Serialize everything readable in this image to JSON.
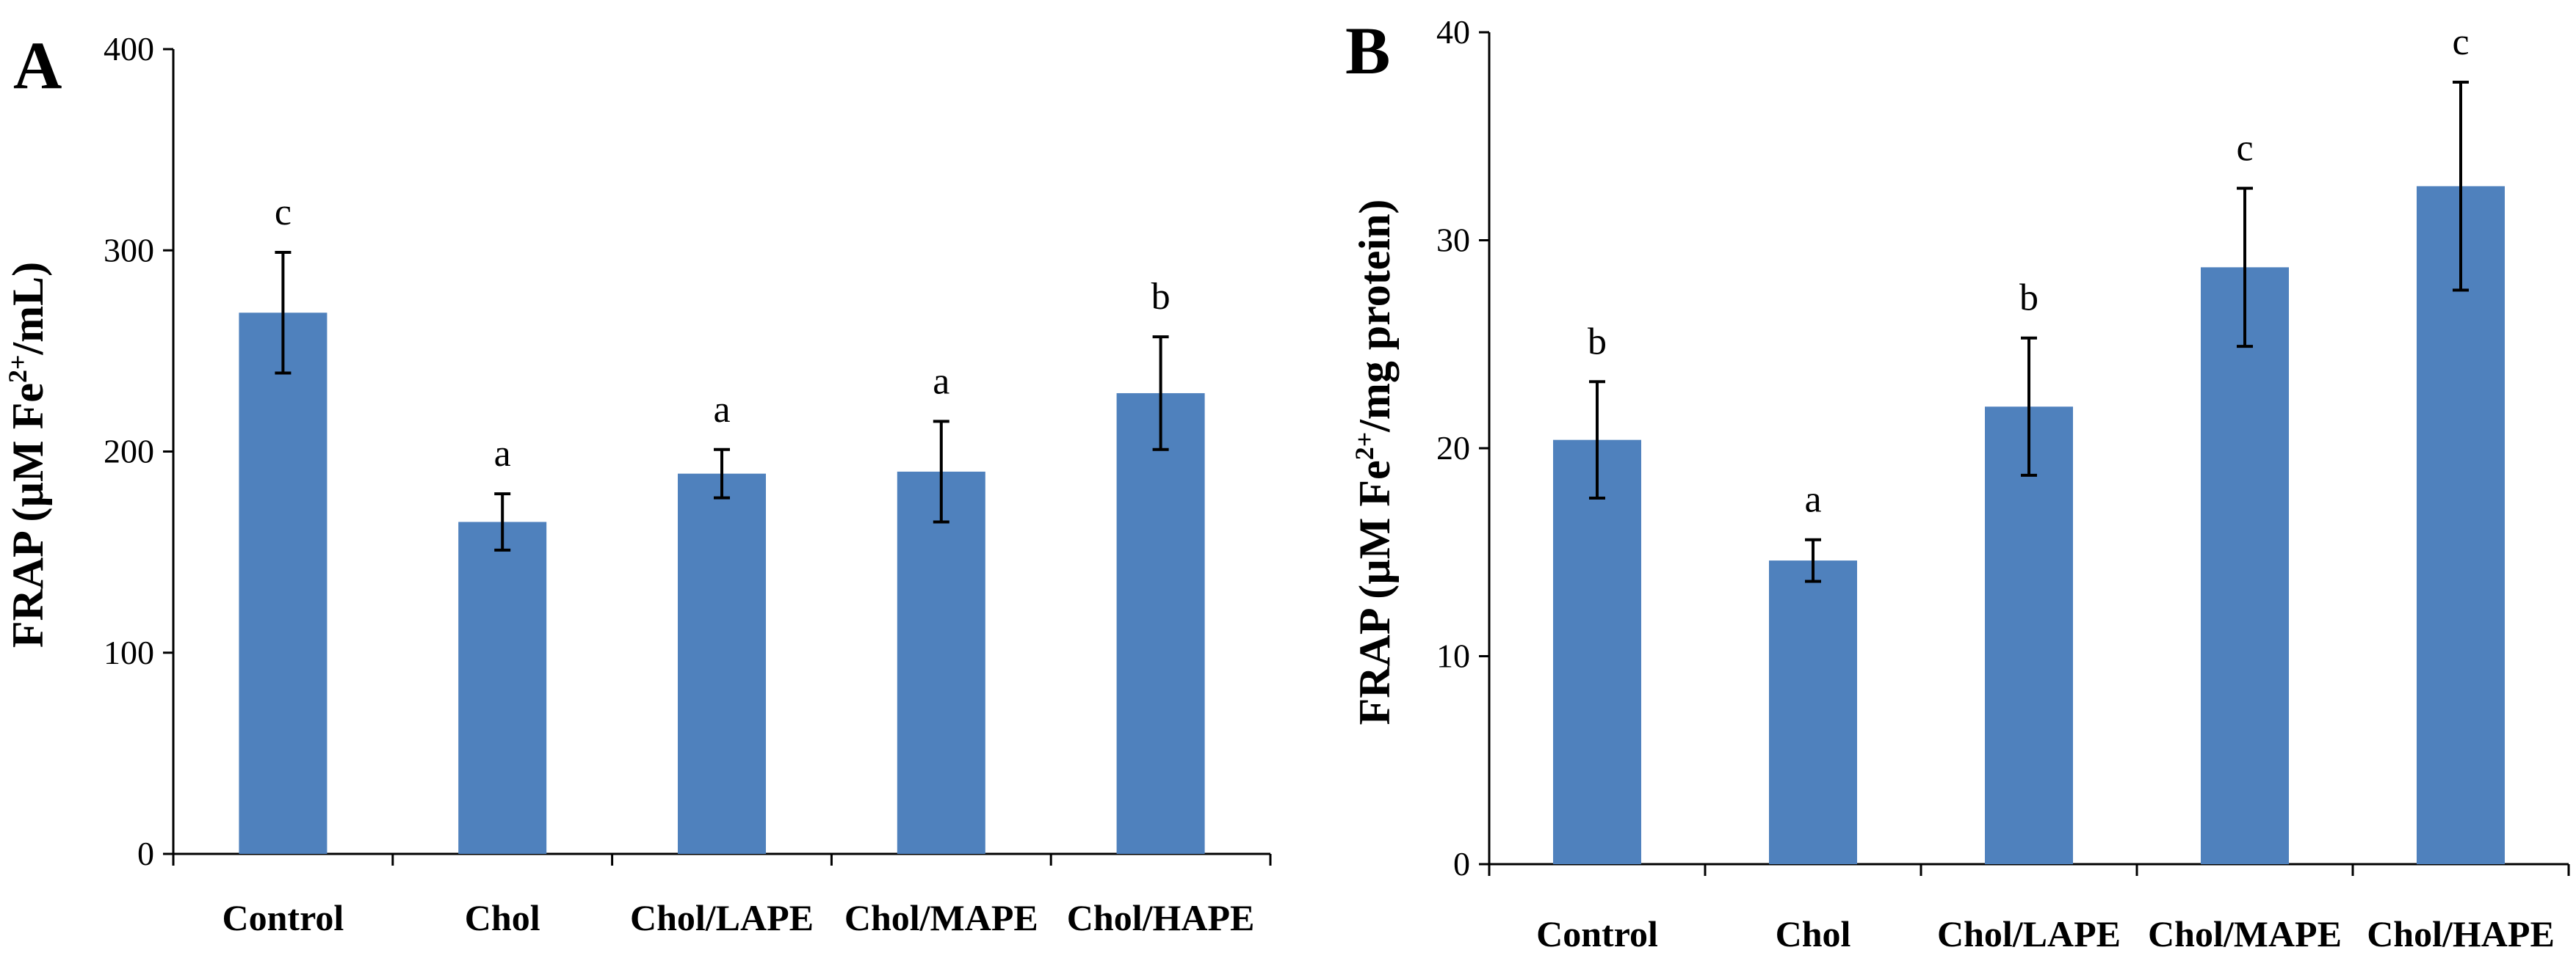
{
  "chart_data": [
    {
      "panel": "A",
      "type": "bar",
      "categories": [
        "Control",
        "Chol",
        "Chol/LAPE",
        "Chol/MAPE",
        "Chol/HAPE"
      ],
      "values": [
        269,
        165,
        189,
        190,
        229
      ],
      "errors": [
        30,
        14,
        12,
        25,
        28
      ],
      "significance": [
        "c",
        "a",
        "a",
        "a",
        "b"
      ],
      "ylabel_prefix": "FRAP (µM Fe",
      "ylabel_sup": "2+",
      "ylabel_suffix": "/mL)",
      "ylim": [
        0,
        400
      ],
      "yticks": [
        0,
        100,
        200,
        300,
        400
      ],
      "bar_color": "#4f81bd"
    },
    {
      "panel": "B",
      "type": "bar",
      "categories": [
        "Control",
        "Chol",
        "Chol/LAPE",
        "Chol/MAPE",
        "Chol/HAPE"
      ],
      "values": [
        20.4,
        14.6,
        22.0,
        28.7,
        32.6
      ],
      "errors": [
        2.8,
        1.0,
        3.3,
        3.8,
        5.0
      ],
      "significance": [
        "b",
        "a",
        "b",
        "c",
        "c"
      ],
      "ylabel_prefix": "FRAP (µM Fe",
      "ylabel_sup": "2+",
      "ylabel_suffix": "/mg protein)",
      "ylim": [
        0,
        40
      ],
      "yticks": [
        0,
        10,
        20,
        30,
        40
      ],
      "bar_color": "#4f81bd"
    }
  ]
}
